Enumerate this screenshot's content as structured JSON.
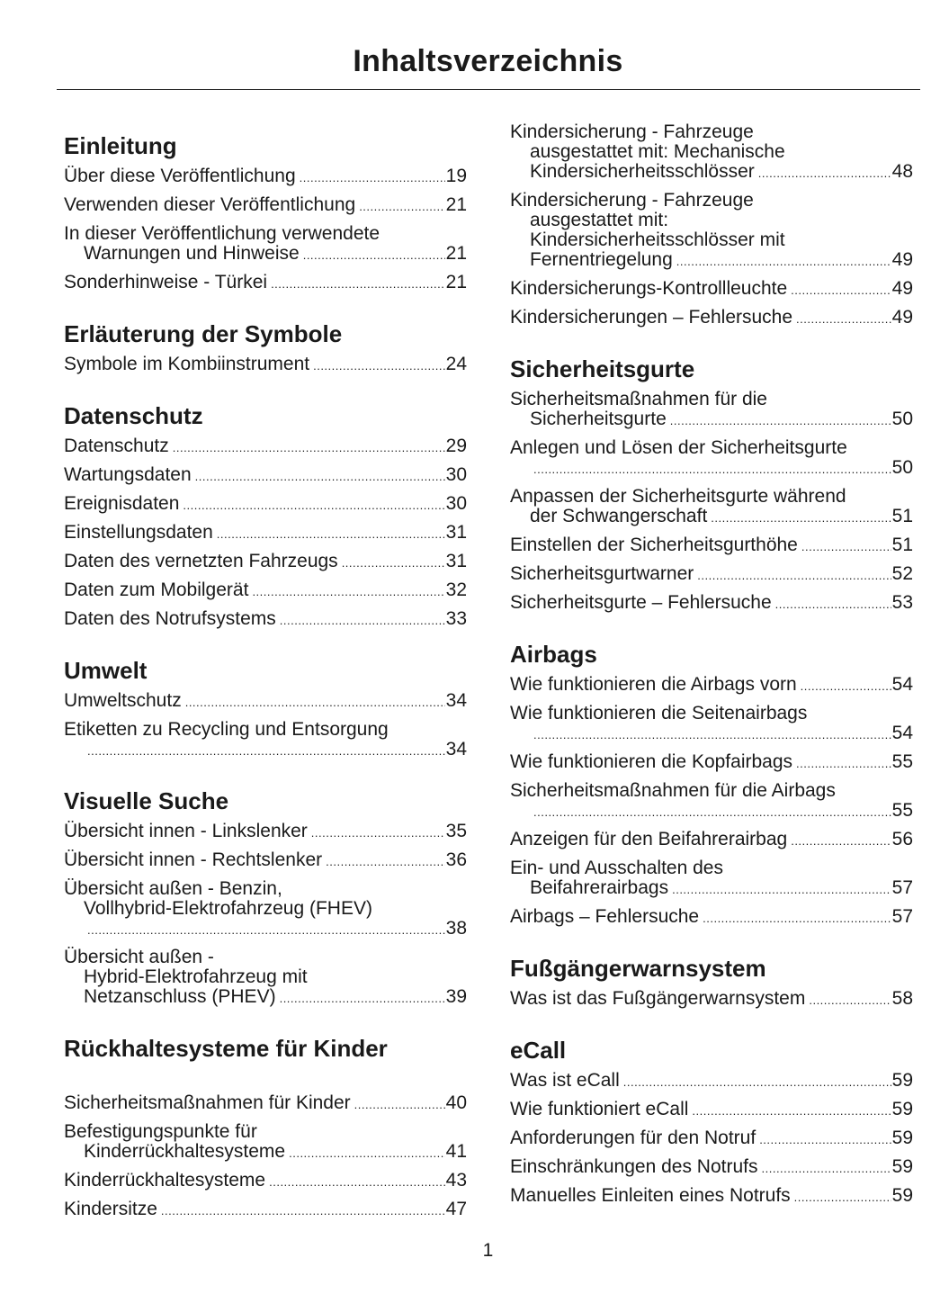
{
  "title": "Inhaltsverzeichnis",
  "page_number": "1",
  "columns": [
    [
      {
        "heading": "Einleitung",
        "entries": [
          {
            "lines": [
              "Über diese Veröffentlichung"
            ],
            "page": "19"
          },
          {
            "lines": [
              "Verwenden dieser Veröffentlichung"
            ],
            "page": "21"
          },
          {
            "lines": [
              "In dieser Veröffentlichung verwendete",
              "Warnungen und Hinweise"
            ],
            "page": "21"
          },
          {
            "lines": [
              "Sonderhinweise - Türkei"
            ],
            "page": "21"
          }
        ]
      },
      {
        "heading": "Erläuterung der Symbole",
        "entries": [
          {
            "lines": [
              "Symbole im Kombiinstrument"
            ],
            "page": "24"
          }
        ]
      },
      {
        "heading": "Datenschutz",
        "entries": [
          {
            "lines": [
              "Datenschutz"
            ],
            "page": "29"
          },
          {
            "lines": [
              "Wartungsdaten"
            ],
            "page": "30"
          },
          {
            "lines": [
              "Ereignisdaten"
            ],
            "page": "30"
          },
          {
            "lines": [
              "Einstellungsdaten"
            ],
            "page": "31"
          },
          {
            "lines": [
              "Daten des vernetzten Fahrzeugs"
            ],
            "page": "31"
          },
          {
            "lines": [
              "Daten zum Mobilgerät"
            ],
            "page": "32"
          },
          {
            "lines": [
              "Daten des Notrufsystems"
            ],
            "page": "33"
          }
        ]
      },
      {
        "heading": "Umwelt",
        "entries": [
          {
            "lines": [
              "Umweltschutz"
            ],
            "page": "34"
          },
          {
            "lines": [
              "Etiketten zu Recycling und Entsorgung",
              ""
            ],
            "page": "34"
          }
        ]
      },
      {
        "heading": "Visuelle Suche",
        "entries": [
          {
            "lines": [
              "Übersicht innen - Linkslenker"
            ],
            "page": "35"
          },
          {
            "lines": [
              "Übersicht innen - Rechtslenker"
            ],
            "page": "36"
          },
          {
            "lines": [
              "Übersicht außen - Benzin,",
              "Vollhybrid-Elektrofahrzeug (FHEV)",
              ""
            ],
            "page": "38"
          },
          {
            "lines": [
              "Übersicht außen -",
              "Hybrid-Elektrofahrzeug mit",
              "Netzanschluss (PHEV)"
            ],
            "page": "39"
          }
        ]
      },
      {
        "heading": "Rückhaltesysteme für Kinder",
        "gap": true,
        "entries": [
          {
            "lines": [
              "Sicherheitsmaßnahmen für Kinder"
            ],
            "page": "40"
          },
          {
            "lines": [
              "Befestigungspunkte für",
              "Kinderrückhaltesysteme"
            ],
            "page": "41"
          },
          {
            "lines": [
              "Kinderrückhaltesysteme"
            ],
            "page": "43"
          },
          {
            "lines": [
              "Kindersitze"
            ],
            "page": "47"
          }
        ]
      }
    ],
    [
      {
        "heading": "",
        "entries": [
          {
            "lines": [
              "Kindersicherung - Fahrzeuge",
              "ausgestattet mit: Mechanische",
              "Kindersicherheitsschlösser"
            ],
            "page": "48"
          },
          {
            "lines": [
              "Kindersicherung - Fahrzeuge",
              "ausgestattet mit:",
              "Kindersicherheitsschlösser mit",
              "Fernentriegelung"
            ],
            "page": "49"
          },
          {
            "lines": [
              "Kindersicherungs-Kontrollleuchte"
            ],
            "page": "49"
          },
          {
            "lines": [
              "Kindersicherungen – Fehlersuche"
            ],
            "page": "49"
          }
        ]
      },
      {
        "heading": "Sicherheitsgurte",
        "entries": [
          {
            "lines": [
              "Sicherheitsmaßnahmen für die",
              "Sicherheitsgurte"
            ],
            "page": "50"
          },
          {
            "lines": [
              "Anlegen und Lösen der Sicherheitsgurte",
              ""
            ],
            "page": "50"
          },
          {
            "lines": [
              "Anpassen der Sicherheitsgurte während",
              "der Schwangerschaft"
            ],
            "page": "51"
          },
          {
            "lines": [
              "Einstellen der Sicherheitsgurthöhe"
            ],
            "page": "51"
          },
          {
            "lines": [
              "Sicherheitsgurtwarner"
            ],
            "page": "52"
          },
          {
            "lines": [
              "Sicherheitsgurte – Fehlersuche"
            ],
            "page": "53"
          }
        ]
      },
      {
        "heading": "Airbags",
        "entries": [
          {
            "lines": [
              "Wie funktionieren die Airbags vorn"
            ],
            "page": "54"
          },
          {
            "lines": [
              "Wie funktionieren die Seitenairbags",
              ""
            ],
            "page": "54"
          },
          {
            "lines": [
              "Wie funktionieren die Kopfairbags"
            ],
            "page": "55"
          },
          {
            "lines": [
              "Sicherheitsmaßnahmen für die Airbags",
              ""
            ],
            "page": "55"
          },
          {
            "lines": [
              "Anzeigen für den Beifahrerairbag"
            ],
            "page": "56"
          },
          {
            "lines": [
              "Ein- und Ausschalten des",
              "Beifahrerairbags"
            ],
            "page": "57"
          },
          {
            "lines": [
              "Airbags – Fehlersuche"
            ],
            "page": "57"
          }
        ]
      },
      {
        "heading": "Fußgängerwarnsystem",
        "entries": [
          {
            "lines": [
              "Was ist das Fußgängerwarnsystem"
            ],
            "page": "58"
          }
        ]
      },
      {
        "heading": "eCall",
        "entries": [
          {
            "lines": [
              "Was ist eCall"
            ],
            "page": "59"
          },
          {
            "lines": [
              "Wie funktioniert eCall"
            ],
            "page": "59"
          },
          {
            "lines": [
              "Anforderungen für den Notruf"
            ],
            "page": "59"
          },
          {
            "lines": [
              "Einschränkungen des Notrufs"
            ],
            "page": "59"
          },
          {
            "lines": [
              "Manuelles Einleiten eines Notrufs"
            ],
            "page": "59"
          }
        ]
      }
    ]
  ]
}
